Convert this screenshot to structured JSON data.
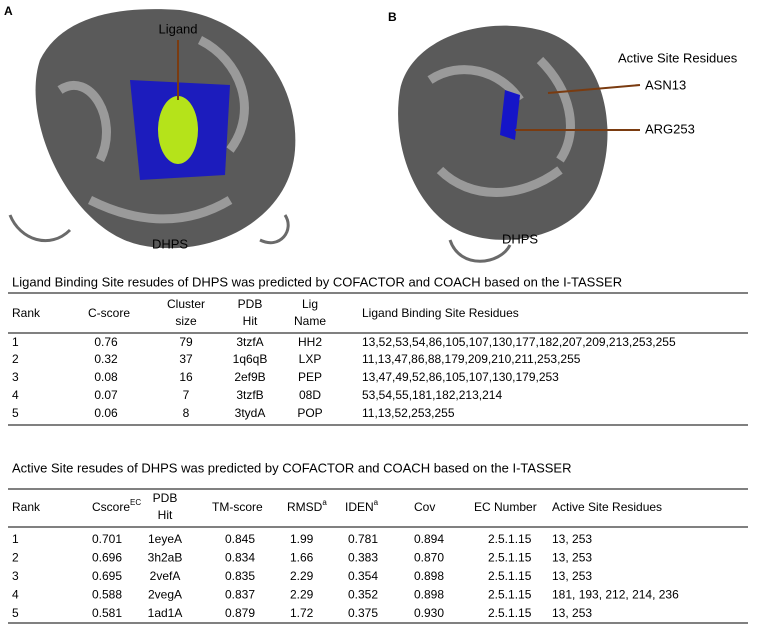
{
  "figure": {
    "panel_a": {
      "label": "A",
      "ligand": "Ligand",
      "protein": "DHPS"
    },
    "panel_b": {
      "label": "B",
      "active_site": "Active Site Residues",
      "res1": "ASN13",
      "res2": "ARG253",
      "protein": "DHPS"
    }
  },
  "table1": {
    "caption": "Ligand Binding Site resudes  of DHPS was predicted by COFACTOR and COACH based on the I-TASSER",
    "header": [
      "Rank",
      "C-score",
      [
        "Cluster",
        "size"
      ],
      [
        "PDB",
        "Hit"
      ],
      [
        "Lig",
        "Name"
      ],
      "Ligand Binding Site Residues"
    ],
    "rows": [
      [
        "1",
        "0.76",
        "79",
        "3tzfA",
        "HH2",
        "13,52,53,54,86,105,107,130,177,182,207,209,213,253,255"
      ],
      [
        "2",
        "0.32",
        "37",
        "1q6qB",
        "LXP",
        "11,13,47,86,88,179,209,210,211,253,255"
      ],
      [
        "3",
        "0.08",
        "16",
        "2ef9B",
        "PEP",
        "13,47,49,52,86,105,107,130,179,253"
      ],
      [
        "4",
        "0.07",
        "7",
        "3tzfB",
        "08D",
        "53,54,55,181,182,213,214"
      ],
      [
        "5",
        "0.06",
        "8",
        "3tydA",
        "POP",
        "11,13,52,253,255"
      ]
    ]
  },
  "table2": {
    "caption": "Active Site resudes  of DHPS was predicted by COFACTOR and COACH based on the I-TASSER",
    "header": [
      "Rank",
      {
        "text": "Cscore",
        "sup": "EC"
      },
      [
        "PDB",
        "Hit"
      ],
      "TM-score",
      {
        "text": "RMSD",
        "sup": "a"
      },
      {
        "text": "IDEN",
        "sup": "a"
      },
      "Cov",
      "EC Number",
      "Active Site Residues"
    ],
    "rows": [
      [
        "1",
        "0.701",
        "1eyeA",
        "0.845",
        "1.99",
        "0.781",
        "0.894",
        "2.5.1.15",
        "13, 253"
      ],
      [
        "2",
        "0.696",
        "3h2aB",
        "0.834",
        "1.66",
        "0.383",
        "0.870",
        "2.5.1.15",
        "13, 253"
      ],
      [
        "3",
        "0.695",
        "2vefA",
        "0.835",
        "2.29",
        "0.354",
        "0.898",
        "2.5.1.15",
        "13, 253"
      ],
      [
        "4",
        "0.588",
        "2vegA",
        "0.837",
        "2.29",
        "0.352",
        "0.898",
        "2.5.1.15",
        "181,  193, 212, 214, 236"
      ],
      [
        "5",
        "0.581",
        "1ad1A",
        "0.879",
        "1.72",
        "0.375",
        "0.930",
        "2.5.1.15",
        "13, 253"
      ]
    ]
  }
}
